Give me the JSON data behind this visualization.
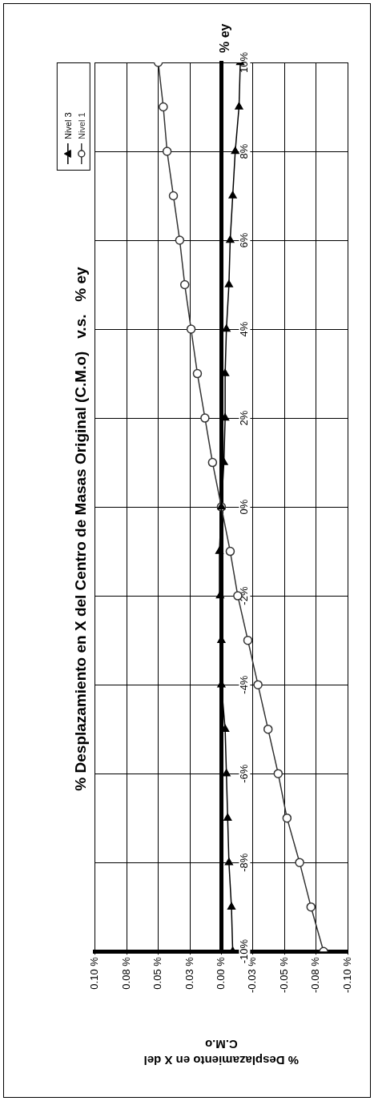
{
  "chart_data": {
    "type": "line",
    "title": "% Desplazamiento en X del Centro de Masas Original (C.M.o)   v.s.   % ey",
    "ylabel": "% ey",
    "xlabel": "% Desplazamiento en X del\nC.M.o",
    "series": [
      {
        "name": "Nivel 3",
        "color": "#000000",
        "marker": "triangle",
        "x": [
          -0.009,
          -0.008,
          -0.006,
          -0.005,
          -0.004,
          -0.003,
          0,
          0,
          0.001,
          0.0015,
          0,
          -0.002,
          -0.003,
          -0.003,
          -0.004,
          -0.006,
          -0.007,
          -0.009,
          -0.011,
          -0.014,
          -0.015
        ],
        "values": [
          -10,
          -9,
          -8,
          -7,
          -6,
          -5,
          -4,
          -3,
          -2,
          -1,
          0,
          1,
          2,
          3,
          4,
          5,
          6,
          7,
          8,
          9,
          10
        ]
      },
      {
        "name": "Nivel 1",
        "color": "#333333",
        "marker": "circle",
        "x": [
          -0.081,
          -0.071,
          -0.062,
          -0.052,
          -0.045,
          -0.037,
          -0.029,
          -0.021,
          -0.013,
          -0.007,
          0,
          0.007,
          0.013,
          0.019,
          0.024,
          0.029,
          0.033,
          0.038,
          0.043,
          0.046,
          0.05
        ],
        "values": [
          -10,
          -9,
          -8,
          -7,
          -6,
          -5,
          -4,
          -3,
          -2,
          -1,
          0,
          1,
          2,
          3,
          4,
          5,
          6,
          7,
          8,
          9,
          10
        ]
      }
    ],
    "ylim": [
      -10,
      10
    ],
    "yticks": [
      {
        "value": -10,
        "label": "-10%"
      },
      {
        "value": -8,
        "label": "-8%"
      },
      {
        "value": -6,
        "label": "-6%"
      },
      {
        "value": -4,
        "label": "-4%"
      },
      {
        "value": -2,
        "label": "-2%"
      },
      {
        "value": 0,
        "label": "0%"
      },
      {
        "value": 2,
        "label": "2%"
      },
      {
        "value": 4,
        "label": "4%"
      },
      {
        "value": 6,
        "label": "6%"
      },
      {
        "value": 8,
        "label": "8%"
      },
      {
        "value": 10,
        "label": "10%"
      }
    ],
    "xlim": [
      0.1,
      -0.1
    ],
    "xticks": [
      {
        "value": 0.1,
        "label": "0.10 %"
      },
      {
        "value": 0.075,
        "label": "0.08 %"
      },
      {
        "value": 0.05,
        "label": "0.05 %"
      },
      {
        "value": 0.025,
        "label": "0.03 %"
      },
      {
        "value": 0,
        "label": "0.00 %"
      },
      {
        "value": -0.025,
        "label": "-0.03 %"
      },
      {
        "value": -0.05,
        "label": "-0.05 %"
      },
      {
        "value": -0.075,
        "label": "-0.08 %"
      },
      {
        "value": -0.1,
        "label": "-0.10 %"
      }
    ],
    "grid": true,
    "legend": "top left",
    "line_style": "solid"
  }
}
